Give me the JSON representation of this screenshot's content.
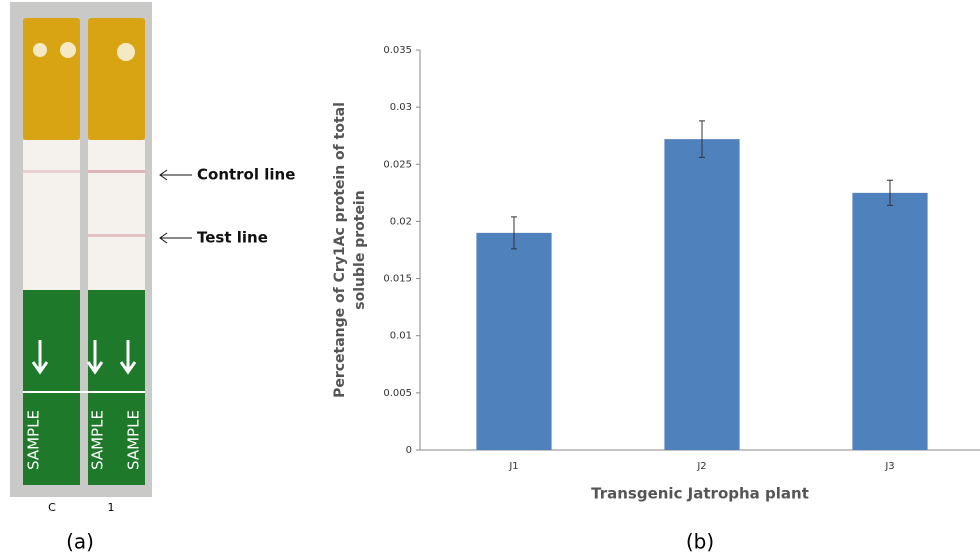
{
  "photo": {
    "strip_labels": [
      "C",
      "1"
    ],
    "strip_texts": [
      "SAMPLE",
      "SAMPLE",
      "SAMPLE"
    ],
    "annotations": [
      "Control line",
      "Test line"
    ],
    "panel_label": "(a)"
  },
  "panel_label": "(b)",
  "chart_data": {
    "type": "bar",
    "y_label": [
      "Percetange of Cry1Ac protein of total",
      "soluble protein"
    ],
    "x_label": "Transgenic Jatropha plant",
    "categories": [
      "J1",
      "J2",
      "J3"
    ],
    "values": [
      0.019,
      0.0272,
      0.0225
    ],
    "errors": [
      0.0014,
      0.0016,
      0.0011
    ],
    "color": "#4f81bd",
    "ylim": [
      0,
      0.035
    ],
    "yticks": [
      0,
      0.005,
      0.01,
      0.015,
      0.02,
      0.025,
      0.03,
      0.035
    ]
  }
}
